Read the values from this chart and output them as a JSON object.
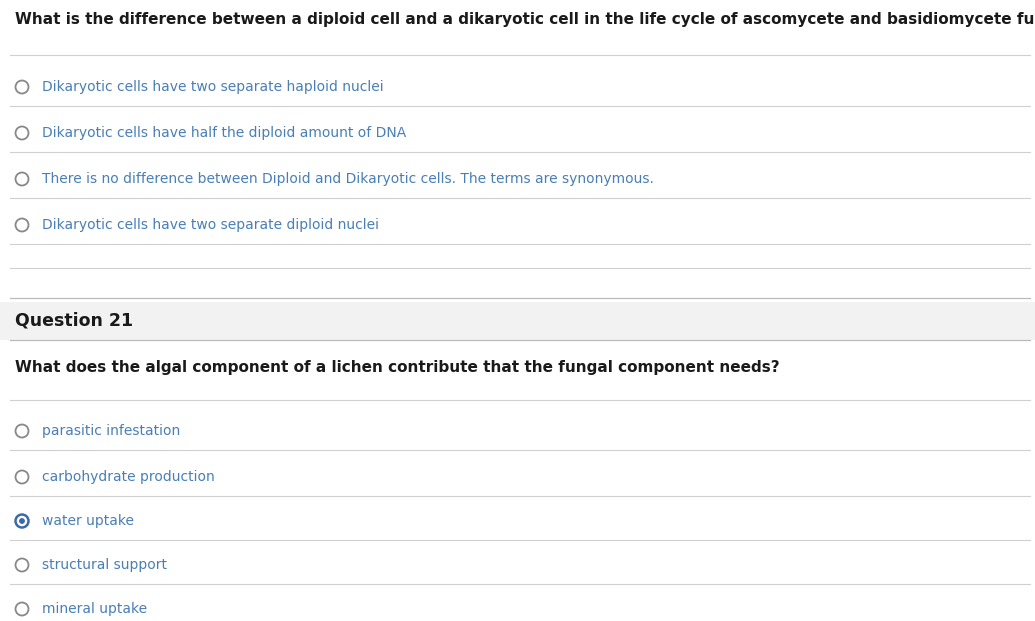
{
  "bg_color": "#ffffff",
  "section_header_bg": "#f2f2f2",
  "line_color": "#d0d0d0",
  "question1_text": "What is the difference between a diploid cell and a dikaryotic cell in the life cycle of ascomycete and basidiomycete fungi?",
  "question1_options": [
    "Dikaryotic cells have two separate haploid nuclei",
    "Dikaryotic cells have half the diploid amount of DNA",
    "There is no difference between Diploid and Dikaryotic cells. The terms are synonymous.",
    "Dikaryotic cells have two separate diploid nuclei"
  ],
  "question1_selected": -1,
  "question2_header": "Question 21",
  "question2_text": "What does the algal component of a lichen contribute that the fungal component needs?",
  "question2_options": [
    "parasitic infestation",
    "carbohydrate production",
    "water uptake",
    "structural support",
    "mineral uptake"
  ],
  "question2_selected": 2,
  "option_text_color": "#4a7fb5",
  "question_text_color": "#1a1a1a",
  "header_text_color": "#1a1a1a",
  "radio_border_color": "#888888",
  "radio_selected_border": "#3a6aaa",
  "radio_selected_fill": "#3a6aaa",
  "font_size_question": 11.0,
  "font_size_option": 10.0,
  "font_size_header": 12.5
}
